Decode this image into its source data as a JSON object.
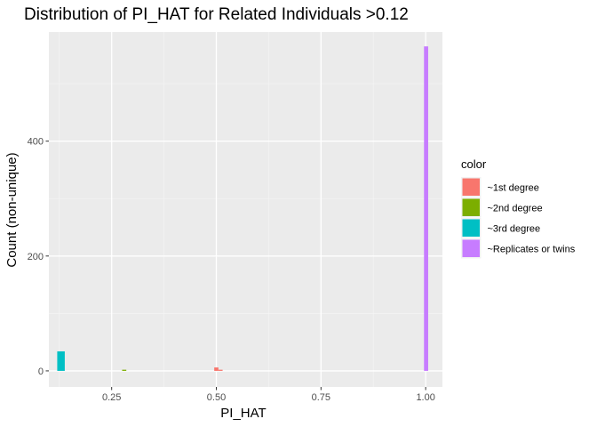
{
  "chart_data": {
    "type": "bar",
    "subtype": "histogram",
    "title": "Distribution of PI_HAT for Related Individuals >0.12",
    "xlabel": "PI_HAT",
    "ylabel": "Count (non-unique)",
    "xlim": [
      0.1,
      1.04
    ],
    "ylim": [
      -28,
      590
    ],
    "xticks": [
      0.25,
      0.5,
      0.75,
      1.0
    ],
    "xtick_labels": [
      "0.25",
      "0.50",
      "0.75",
      "1.00"
    ],
    "yticks": [
      0,
      200,
      400
    ],
    "ytick_labels": [
      "0",
      "200",
      "400"
    ],
    "grid": true,
    "legend_position": "right",
    "legend_title": "color",
    "series": [
      {
        "name": "~1st degree",
        "color": "#F8766D",
        "bins": [
          {
            "x0": 0.495,
            "x1": 0.505,
            "count": 6
          },
          {
            "x0": 0.505,
            "x1": 0.515,
            "count": 2
          }
        ]
      },
      {
        "name": "~2nd degree",
        "color": "#7CAE00",
        "bins": [
          {
            "x0": 0.275,
            "x1": 0.285,
            "count": 2
          }
        ]
      },
      {
        "name": "~3rd degree",
        "color": "#00BFC4",
        "bins": [
          {
            "x0": 0.12,
            "x1": 0.138,
            "count": 34
          }
        ]
      },
      {
        "name": "~Replicates or twins",
        "color": "#C77CFF",
        "bins": [
          {
            "x0": 0.996,
            "x1": 1.006,
            "count": 565
          }
        ]
      }
    ]
  }
}
